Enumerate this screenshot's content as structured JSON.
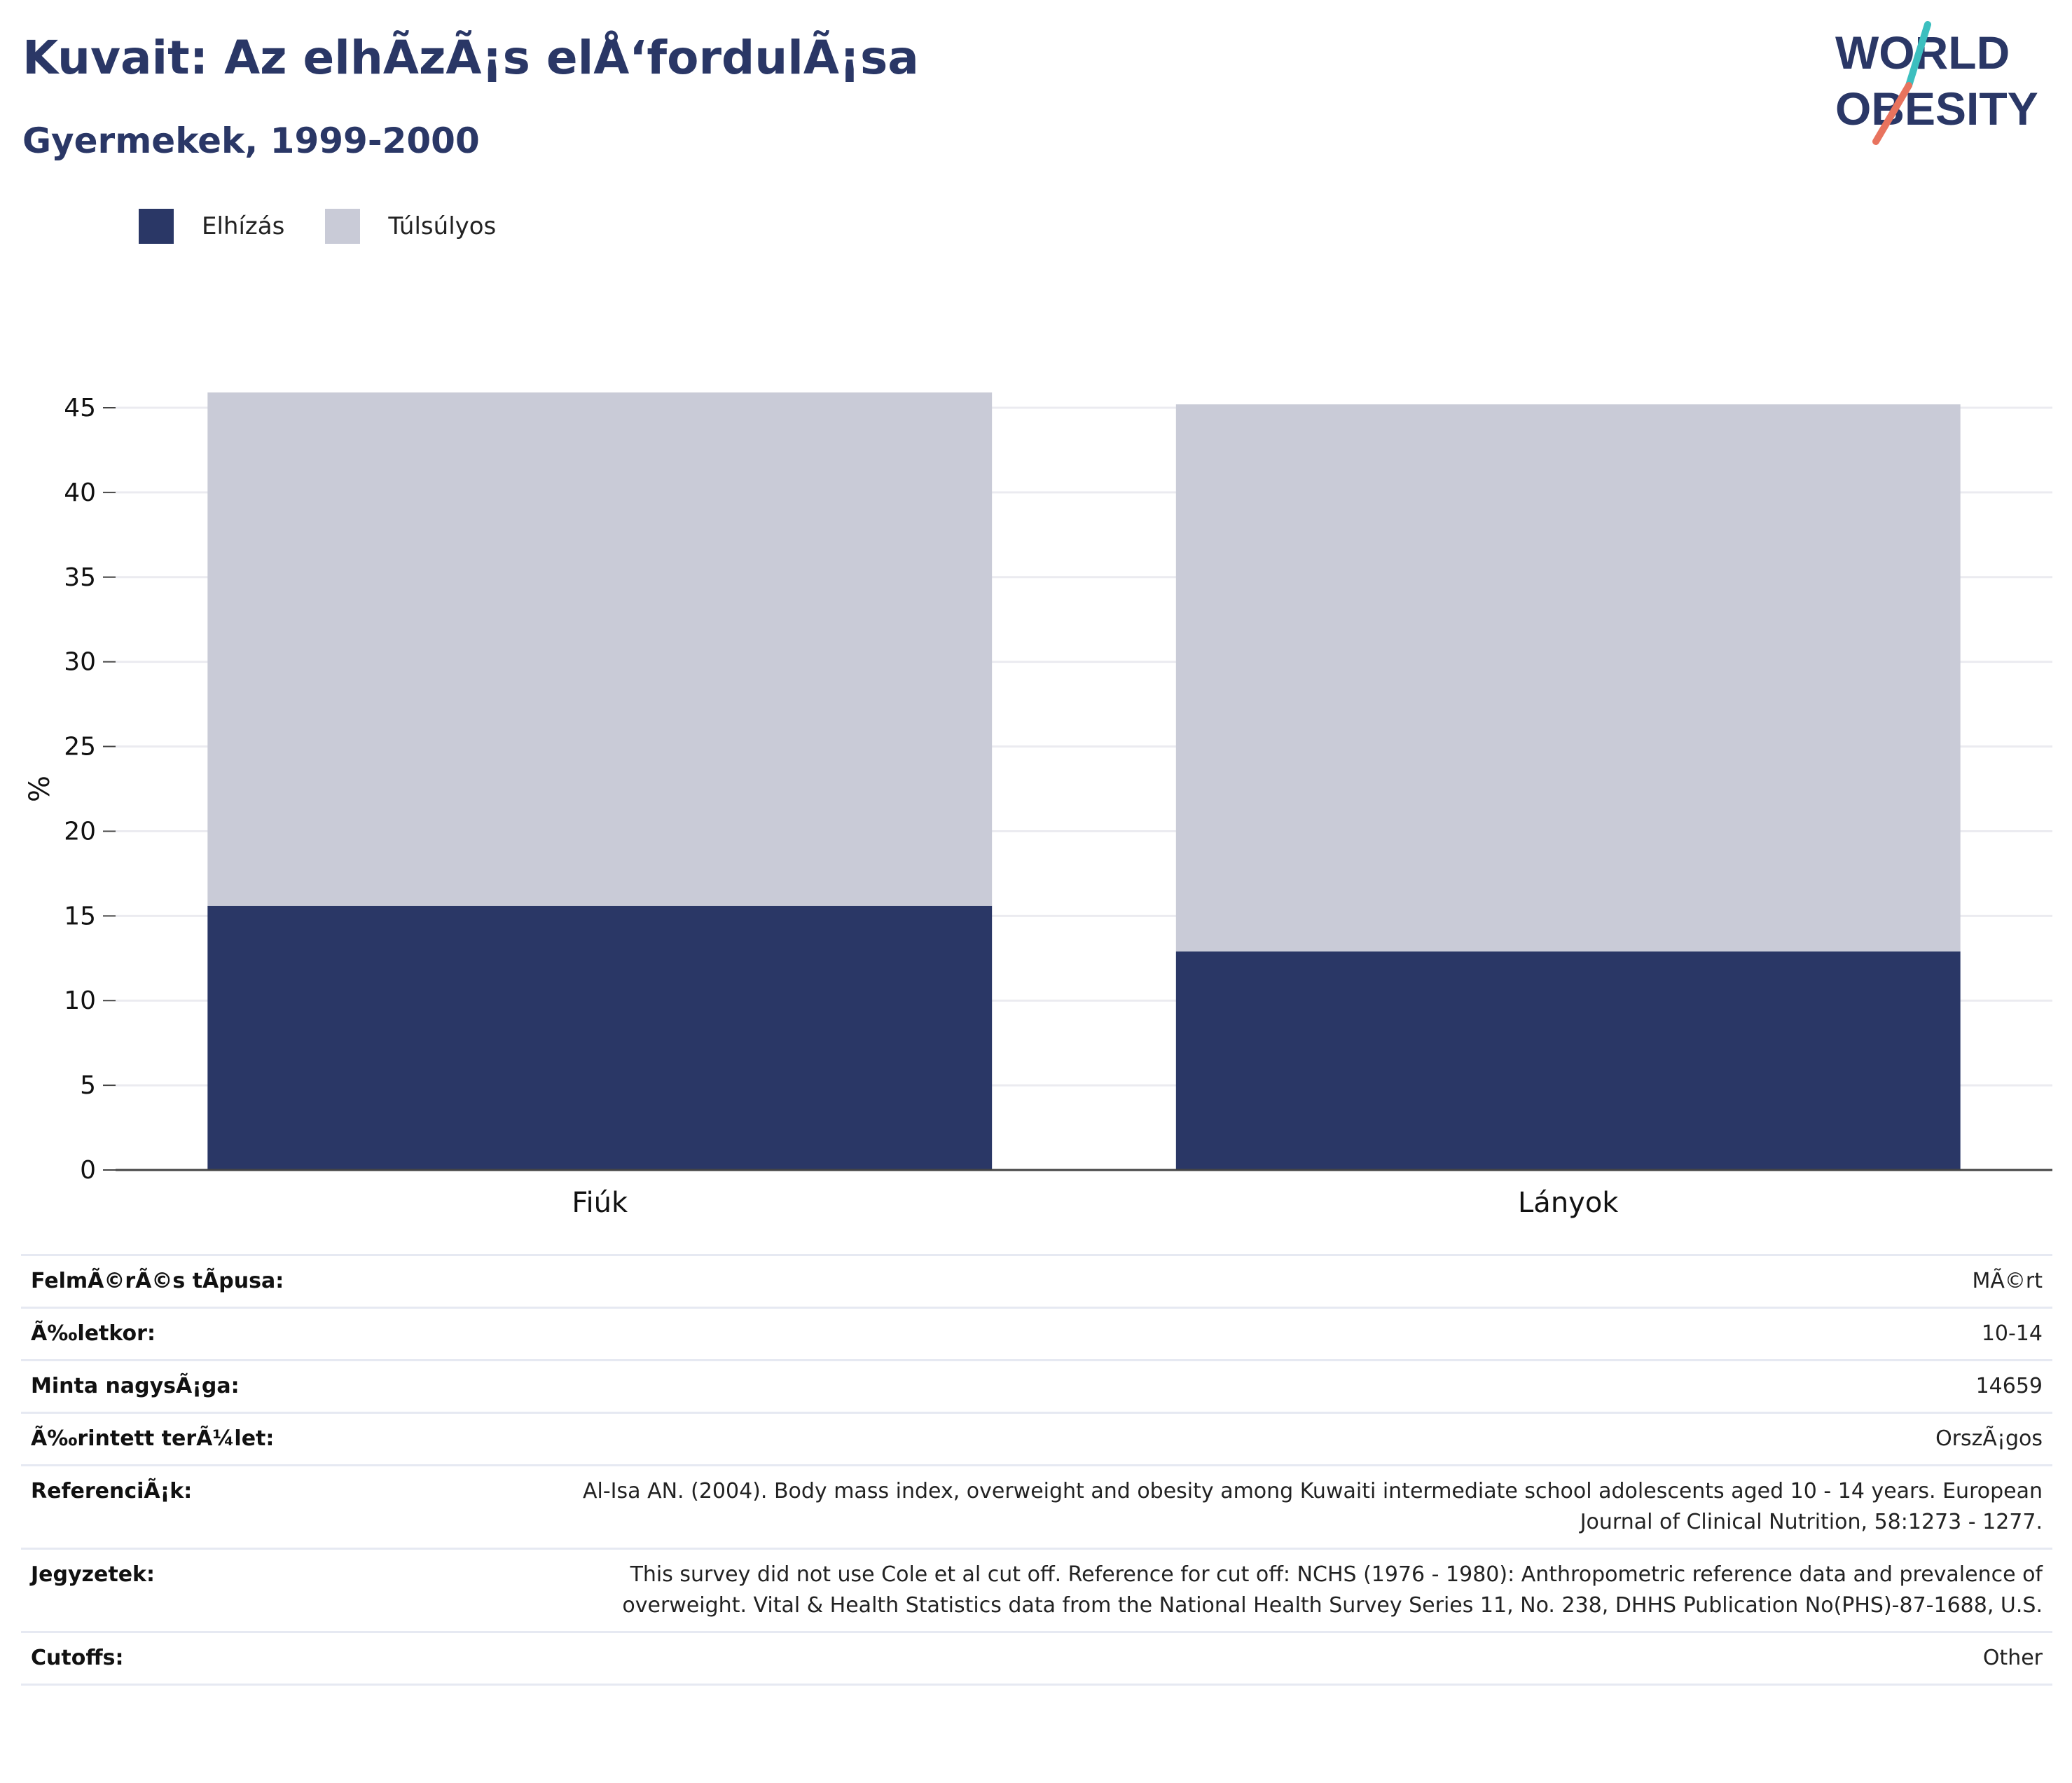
{
  "header": {
    "title": "Kuvait: Az elhÃzÃ¡s elÅ‘fordulÃ¡sa",
    "subtitle": "Gyermekek, 1999-2000"
  },
  "logo": {
    "line1": "WORLD",
    "line2": "OBESITY",
    "accent_teal": "#3cbfbf",
    "accent_coral": "#e8735e",
    "text_color": "#2a3766"
  },
  "legend": [
    {
      "label": "Elhízás",
      "color": "#2a3766"
    },
    {
      "label": "Túlsúlyos",
      "color": "#c9cbd7"
    }
  ],
  "chart_data": {
    "type": "bar",
    "stacked": true,
    "categories": [
      "Fiúk",
      "Lányok"
    ],
    "series": [
      {
        "name": "Elhízás",
        "values": [
          15.6,
          12.9
        ],
        "color": "#2a3766"
      },
      {
        "name": "Túlsúlyos",
        "values": [
          30.3,
          32.3
        ],
        "color": "#c9cbd7"
      }
    ],
    "ylabel": "%",
    "xlabel": "",
    "ylim": [
      0,
      45
    ],
    "yticks": [
      0,
      5,
      10,
      15,
      20,
      25,
      30,
      35,
      40,
      45
    ],
    "grid": true,
    "legend_position": "top-left"
  },
  "info": [
    {
      "key": "FelmÃ©rÃ©s tÃpusa:",
      "value": "MÃ©rt"
    },
    {
      "key": "Ã‰letkor:",
      "value": "10-14"
    },
    {
      "key": "Minta nagysÃ¡ga:",
      "value": "14659"
    },
    {
      "key": "Ã‰rintett terÃ¼let:",
      "value": "OrszÃ¡gos"
    },
    {
      "key": "ReferenciÃ¡k:",
      "value": "Al-Isa AN. (2004). Body mass index, overweight and obesity among Kuwaiti intermediate school adolescents aged 10 - 14 years. European Journal of Clinical Nutrition, 58:1273 - 1277."
    },
    {
      "key": "Jegyzetek:",
      "value": "This survey did not use Cole et al cut off. Reference for cut off: NCHS (1976 - 1980): Anthropometric reference data and prevalence of overweight. Vital & Health Statistics data from the National Health Survey Series 11, No. 238, DHHS Publication No(PHS)-87-1688, U.S."
    },
    {
      "key": "Cutoffs:",
      "value": "Other"
    }
  ]
}
